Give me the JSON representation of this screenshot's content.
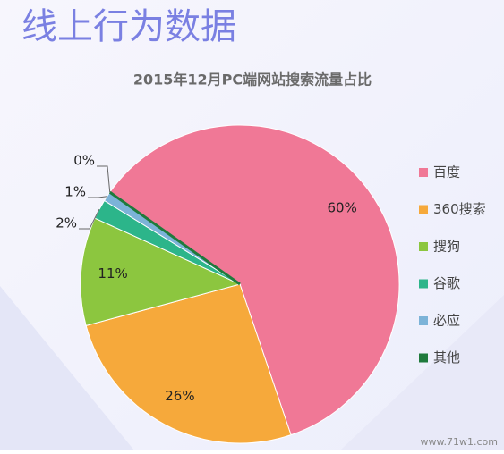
{
  "heading": "线上行为数据",
  "watermark": "www.71w1.com",
  "chart_data": {
    "type": "pie",
    "title": "2015年12月PC端网站搜索流量占比",
    "categories": [
      "百度",
      "360搜索",
      "搜狗",
      "谷歌",
      "必应",
      "其他"
    ],
    "values": [
      60,
      26,
      11,
      2,
      1,
      0
    ],
    "value_labels": [
      "60%",
      "26%",
      "11%",
      "2%",
      "1%",
      "0%"
    ],
    "colors": [
      "#f07896",
      "#f6a93b",
      "#8cc63f",
      "#2cb58a",
      "#7cb3d8",
      "#1f7a3c"
    ],
    "legend": "right"
  }
}
